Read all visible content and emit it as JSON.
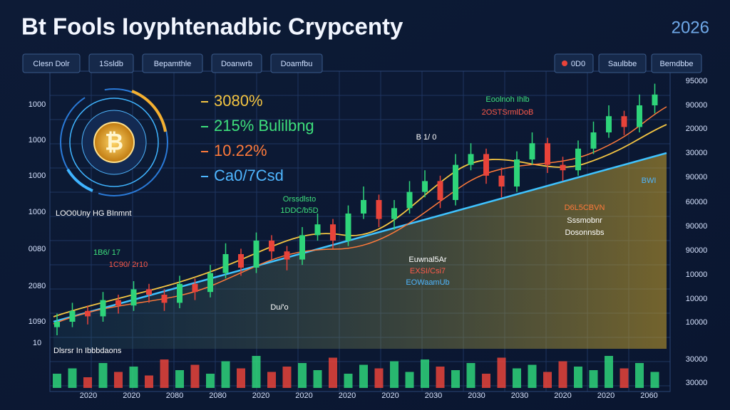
{
  "chart_data": {
    "type": "candlestick",
    "title": "Bt Fools Ioyphtenadbic Crypcenty",
    "year_badge": "2026",
    "toolbar_left": [
      "Clesn Dolr",
      "1Ssldb",
      "Bepamthle",
      "Doanwrb",
      "Doamfbu"
    ],
    "toolbar_right": [
      "0D0",
      "Saulbbe",
      "Bemdbbe"
    ],
    "icon_symbol": "₿",
    "stats": [
      {
        "text": "3080%",
        "color": "#f4c542"
      },
      {
        "text": "215% Bulilbng",
        "color": "#3ee07c"
      },
      {
        "text": "10.22%",
        "color": "#ff7a3a"
      },
      {
        "text": "Ca0/7Csd",
        "color": "#4fb6ff"
      }
    ],
    "left_axis_labels": [
      "1000",
      "1000",
      "1000",
      "1000",
      "0080",
      "2080",
      "1090",
      "10"
    ],
    "right_axis_labels": [
      "95000",
      "90000",
      "20000",
      "30000",
      "90000",
      "60000",
      "90000",
      "90000",
      "10000",
      "10000",
      "10000",
      "30000",
      "30000"
    ],
    "x_axis_labels": [
      "2020",
      "2020",
      "2080",
      "2080",
      "2020",
      "2020",
      "2020",
      "2020",
      "2030",
      "2030",
      "2030",
      "2020",
      "2020",
      "2060"
    ],
    "annotations": [
      {
        "text": "LOO0Uny HG BInmnt",
        "color": "#ffffff"
      },
      {
        "text": "1B6/ 17",
        "color": "#3ee07c"
      },
      {
        "text": "1C90/ 2r10",
        "color": "#ff5a4a"
      },
      {
        "text": "Orssdlsto",
        "color": "#3ee07c"
      },
      {
        "text": "1DDC/b5D",
        "color": "#3ee07c"
      },
      {
        "text": "B 1/ 0",
        "color": "#ffffff"
      },
      {
        "text": "Eoolnoh Ihlb",
        "color": "#3ee07c"
      },
      {
        "text": "2OSTSrmlDoB",
        "color": "#ff5a4a"
      },
      {
        "text": "Euwnal5Ar",
        "color": "#ffffff"
      },
      {
        "text": "EXSI/Csi7",
        "color": "#ff5a4a"
      },
      {
        "text": "EOWaamUb",
        "color": "#4fb6ff"
      },
      {
        "text": "D6L5CBVN",
        "color": "#ff7a3a"
      },
      {
        "text": "Sssmobnr",
        "color": "#ffffff"
      },
      {
        "text": "Dosonnsbs",
        "color": "#ffffff"
      },
      {
        "text": "Du/'o",
        "color": "#ffffff"
      },
      {
        "text": "BWI",
        "color": "#4fb6ff"
      },
      {
        "text": "Dlsrsr In Ibbbdaons",
        "color": "#ffffff"
      }
    ],
    "ylim": [
      0,
      100
    ],
    "up_color": "#2ed47a",
    "down_color": "#e8433a",
    "open": [
      8,
      10,
      14,
      12,
      18,
      16,
      22,
      20,
      17,
      24,
      21,
      28,
      35,
      30,
      40,
      36,
      33,
      42,
      46,
      40,
      50,
      55,
      48,
      52,
      58,
      62,
      55,
      68,
      72,
      64,
      60,
      70,
      76,
      68,
      66,
      74,
      80,
      86,
      82,
      90
    ],
    "high": [
      13,
      17,
      16,
      21,
      20,
      25,
      24,
      22,
      27,
      26,
      31,
      39,
      37,
      43,
      42,
      38,
      45,
      50,
      48,
      53,
      60,
      57,
      55,
      62,
      66,
      64,
      72,
      76,
      74,
      67,
      73,
      80,
      78,
      71,
      77,
      84,
      90,
      88,
      94,
      98
    ],
    "low": [
      5,
      8,
      9,
      10,
      13,
      14,
      17,
      14,
      15,
      18,
      19,
      26,
      27,
      28,
      33,
      29,
      31,
      40,
      37,
      38,
      48,
      45,
      44,
      50,
      56,
      52,
      53,
      66,
      61,
      56,
      58,
      68,
      65,
      62,
      64,
      72,
      78,
      79,
      80,
      87
    ],
    "close": [
      10,
      14,
      12,
      18,
      16,
      22,
      20,
      17,
      24,
      21,
      28,
      35,
      30,
      40,
      36,
      33,
      42,
      46,
      40,
      50,
      55,
      48,
      52,
      58,
      62,
      55,
      68,
      72,
      64,
      60,
      70,
      76,
      68,
      66,
      74,
      80,
      86,
      82,
      90,
      94
    ],
    "volume": [
      40,
      55,
      30,
      70,
      45,
      60,
      35,
      80,
      50,
      65,
      40,
      75,
      55,
      90,
      45,
      60,
      70,
      50,
      85,
      40,
      65,
      55,
      75,
      45,
      80,
      60,
      50,
      70,
      40,
      85,
      55,
      65,
      45,
      75,
      60,
      50,
      90,
      55,
      70,
      45
    ]
  }
}
